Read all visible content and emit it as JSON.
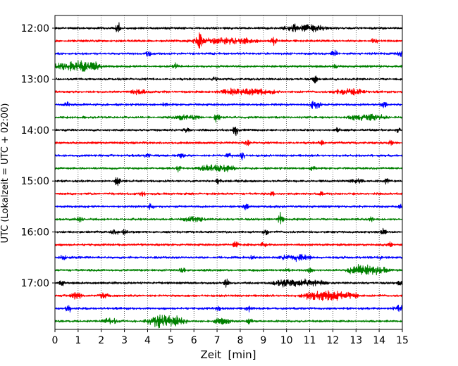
{
  "chart_data": {
    "type": "line",
    "title": "",
    "xlabel": "Zeit  [min]",
    "ylabel": "UTC (Lokalzeit = UTC + 02:00)",
    "xlim": [
      0,
      15
    ],
    "x_ticks": [
      0,
      1,
      2,
      3,
      4,
      5,
      6,
      7,
      8,
      9,
      10,
      11,
      12,
      13,
      14,
      15
    ],
    "x_tick_labels": [
      "0",
      "1",
      "2",
      "3",
      "4",
      "5",
      "6",
      "7",
      "8",
      "9",
      "10",
      "11",
      "12",
      "13",
      "14",
      "15"
    ],
    "y_tick_labels": [
      {
        "label": "12:00",
        "trace_index": 0
      },
      {
        "label": "13:00",
        "trace_index": 4
      },
      {
        "label": "14:00",
        "trace_index": 8
      },
      {
        "label": "15:00",
        "trace_index": 12
      },
      {
        "label": "16:00",
        "trace_index": 16
      },
      {
        "label": "17:00",
        "trace_index": 20
      }
    ],
    "grid": "vertical dotted at each minute",
    "trace_minutes": 15,
    "color_cycle": [
      "#000000",
      "#ff0000",
      "#0000ff",
      "#008000"
    ],
    "traces": [
      {
        "start": "12:00",
        "color": "#000000",
        "events": [
          [
            2.75,
            2.6,
            0.05
          ],
          [
            10.8,
            1.6,
            1.0
          ]
        ]
      },
      {
        "start": "12:15",
        "color": "#ff0000",
        "events": [
          [
            6.25,
            3.0,
            0.05
          ],
          [
            7.3,
            1.3,
            1.6
          ],
          [
            9.45,
            2.5,
            0.05
          ],
          [
            13.8,
            1.6,
            0.05
          ]
        ]
      },
      {
        "start": "12:30",
        "color": "#0000ff",
        "events": [
          [
            4.05,
            1.4,
            0.06
          ],
          [
            12.05,
            1.8,
            0.08
          ],
          [
            14.95,
            1.5,
            0.1
          ]
        ]
      },
      {
        "start": "12:45",
        "color": "#008000",
        "events": [
          [
            0.4,
            1.4,
            0.6
          ],
          [
            1.4,
            2.3,
            0.7
          ],
          [
            5.2,
            1.2,
            0.05
          ],
          [
            12.1,
            1.0,
            0.05
          ]
        ]
      },
      {
        "start": "13:00",
        "color": "#000000",
        "events": [
          [
            11.25,
            2.4,
            0.05
          ],
          [
            6.9,
            1.0,
            0.05
          ]
        ]
      },
      {
        "start": "13:15",
        "color": "#ff0000",
        "events": [
          [
            3.6,
            1.1,
            0.3
          ],
          [
            8.3,
            1.3,
            1.4
          ],
          [
            12.7,
            1.3,
            0.7
          ]
        ]
      },
      {
        "start": "13:30",
        "color": "#0000ff",
        "events": [
          [
            0.5,
            1.4,
            0.05
          ],
          [
            4.7,
            1.0,
            0.05
          ],
          [
            11.2,
            2.2,
            0.2
          ],
          [
            14.2,
            1.3,
            0.08
          ]
        ]
      },
      {
        "start": "13:45",
        "color": "#008000",
        "events": [
          [
            7.0,
            2.3,
            0.05
          ],
          [
            5.7,
            1.0,
            0.6
          ],
          [
            13.5,
            1.2,
            0.9
          ]
        ]
      },
      {
        "start": "14:00",
        "color": "#000000",
        "events": [
          [
            7.8,
            2.6,
            0.05
          ],
          [
            12.2,
            1.4,
            0.05
          ],
          [
            5.7,
            1.0,
            0.05
          ],
          [
            14.8,
            1.0,
            0.05
          ]
        ]
      },
      {
        "start": "14:15",
        "color": "#ff0000",
        "events": [
          [
            8.3,
            1.1,
            0.05
          ],
          [
            11.5,
            1.0,
            0.05
          ],
          [
            14.5,
            1.0,
            0.05
          ]
        ]
      },
      {
        "start": "14:30",
        "color": "#0000ff",
        "events": [
          [
            4.0,
            1.1,
            0.05
          ],
          [
            5.45,
            1.3,
            0.05
          ],
          [
            7.5,
            1.3,
            0.1
          ],
          [
            8.1,
            1.8,
            0.05
          ]
        ]
      },
      {
        "start": "14:45",
        "color": "#008000",
        "events": [
          [
            5.35,
            1.8,
            0.05
          ],
          [
            7.0,
            1.6,
            0.8
          ],
          [
            11.1,
            1.0,
            0.05
          ]
        ]
      },
      {
        "start": "15:00",
        "color": "#000000",
        "events": [
          [
            2.7,
            2.4,
            0.05
          ],
          [
            7.05,
            1.2,
            0.05
          ],
          [
            14.3,
            1.2,
            0.05
          ],
          [
            13.0,
            0.9,
            0.3
          ]
        ]
      },
      {
        "start": "15:15",
        "color": "#ff0000",
        "events": [
          [
            3.8,
            1.0,
            0.1
          ],
          [
            9.4,
            1.0,
            0.05
          ],
          [
            11.5,
            0.9,
            0.05
          ]
        ]
      },
      {
        "start": "15:30",
        "color": "#0000ff",
        "events": [
          [
            4.15,
            1.6,
            0.05
          ],
          [
            8.25,
            1.4,
            0.05
          ],
          [
            14.9,
            1.0,
            0.05
          ]
        ]
      },
      {
        "start": "15:45",
        "color": "#008000",
        "events": [
          [
            1.1,
            1.2,
            0.05
          ],
          [
            9.75,
            3.2,
            0.05
          ],
          [
            13.6,
            2.0,
            0.05
          ],
          [
            6.0,
            0.9,
            0.5
          ]
        ]
      },
      {
        "start": "16:00",
        "color": "#000000",
        "events": [
          [
            2.6,
            1.2,
            0.1
          ],
          [
            3.0,
            1.1,
            0.05
          ],
          [
            9.1,
            1.2,
            0.05
          ],
          [
            14.2,
            2.0,
            0.05
          ]
        ]
      },
      {
        "start": "16:15",
        "color": "#ff0000",
        "events": [
          [
            7.8,
            1.8,
            0.05
          ],
          [
            9.0,
            1.0,
            0.05
          ],
          [
            14.45,
            1.2,
            0.05
          ]
        ]
      },
      {
        "start": "16:30",
        "color": "#0000ff",
        "events": [
          [
            0.35,
            1.4,
            0.05
          ],
          [
            8.5,
            1.3,
            0.05
          ],
          [
            10.4,
            1.3,
            0.7
          ],
          [
            14.0,
            1.0,
            0.05
          ]
        ]
      },
      {
        "start": "16:45",
        "color": "#008000",
        "events": [
          [
            5.5,
            1.2,
            0.05
          ],
          [
            10.0,
            1.1,
            0.05
          ],
          [
            13.5,
            2.4,
            0.9
          ],
          [
            11.0,
            1.0,
            0.05
          ]
        ]
      },
      {
        "start": "17:00",
        "color": "#000000",
        "events": [
          [
            0.3,
            1.4,
            0.05
          ],
          [
            7.4,
            1.5,
            0.05
          ],
          [
            10.5,
            1.5,
            1.3
          ],
          [
            14.9,
            1.2,
            0.05
          ]
        ]
      },
      {
        "start": "17:15",
        "color": "#ff0000",
        "events": [
          [
            0.9,
            1.6,
            0.2
          ],
          [
            2.1,
            1.1,
            0.2
          ],
          [
            11.8,
            2.2,
            1.2
          ],
          [
            13.0,
            1.0,
            0.05
          ]
        ]
      },
      {
        "start": "17:30",
        "color": "#0000ff",
        "events": [
          [
            0.6,
            2.0,
            0.05
          ],
          [
            8.35,
            2.2,
            0.05
          ],
          [
            14.85,
            1.8,
            0.2
          ],
          [
            7.05,
            1.0,
            0.05
          ]
        ]
      },
      {
        "start": "17:45",
        "color": "#008000",
        "events": [
          [
            4.8,
            2.6,
            0.9
          ],
          [
            2.4,
            1.3,
            0.3
          ],
          [
            8.4,
            2.0,
            0.05
          ],
          [
            7.2,
            1.2,
            0.4
          ]
        ]
      }
    ]
  }
}
